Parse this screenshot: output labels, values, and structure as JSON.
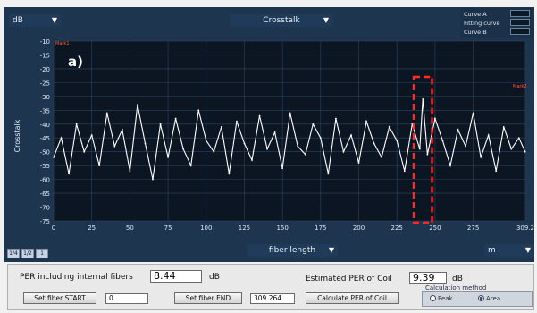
{
  "top": {
    "unit_dropdown": "dB",
    "measurement_dropdown": "Crosstalk",
    "xaxis_dropdown": "fiber length",
    "xunit_dropdown": "m"
  },
  "legend": {
    "items": [
      {
        "label": "Curve A",
        "color": "#ffffff"
      },
      {
        "label": "Fitting curve",
        "color": "#ff7070"
      },
      {
        "label": "Curve B",
        "color": "#7fe27f"
      }
    ]
  },
  "chart_data": {
    "type": "line",
    "title": "",
    "xlabel": "",
    "ylabel": "Crosstalk",
    "xlim": [
      0,
      309.2
    ],
    "ylim": [
      -75,
      -10
    ],
    "x_ticks": [
      "0",
      "25",
      "50",
      "75",
      "100",
      "125",
      "150",
      "175",
      "200",
      "225",
      "250",
      "275",
      "309.2"
    ],
    "y_ticks": [
      "-10",
      "-15",
      "-20",
      "-25",
      "-30",
      "-35",
      "-40",
      "-45",
      "-50",
      "-55",
      "-60",
      "-65",
      "-70",
      "-75"
    ],
    "panel_label": "a)",
    "marker_left_label": "Mark1",
    "marker_right_label": "Mark2",
    "grid": true,
    "highlight_region": {
      "x_start": 236,
      "x_end": 248,
      "color": "#ff2a2a",
      "style": "dashed"
    },
    "series": [
      {
        "name": "Curve A",
        "color": "#ffffff",
        "x": [
          0,
          5,
          10,
          15,
          20,
          25,
          30,
          35,
          40,
          45,
          50,
          55,
          60,
          65,
          70,
          75,
          80,
          85,
          90,
          95,
          100,
          105,
          110,
          115,
          120,
          125,
          130,
          135,
          140,
          145,
          150,
          155,
          160,
          165,
          170,
          175,
          180,
          185,
          190,
          195,
          200,
          205,
          210,
          215,
          220,
          225,
          230,
          235,
          240,
          242,
          245,
          250,
          255,
          260,
          265,
          270,
          275,
          280,
          285,
          290,
          295,
          300,
          305,
          309
        ],
        "y": [
          -52,
          -45,
          -58,
          -40,
          -50,
          -44,
          -55,
          -36,
          -48,
          -42,
          -57,
          -33,
          -47,
          -60,
          -40,
          -52,
          -38,
          -49,
          -55,
          -35,
          -46,
          -50,
          -41,
          -58,
          -39,
          -47,
          -53,
          -37,
          -49,
          -43,
          -56,
          -36,
          -48,
          -51,
          -40,
          -45,
          -58,
          -38,
          -50,
          -44,
          -54,
          -39,
          -47,
          -52,
          -41,
          -46,
          -57,
          -40,
          -49,
          -31,
          -51,
          -38,
          -46,
          -55,
          -42,
          -48,
          -36,
          -52,
          -44,
          -57,
          -41,
          -49,
          -45,
          -50
        ]
      }
    ]
  },
  "bottom": {
    "per_internal_label": "PER including  internal fibers",
    "per_internal_value": "8.44",
    "per_internal_unit": "dB",
    "est_per_label": "Estimated PER of Coil",
    "est_per_value": "9.39",
    "est_per_unit": "dB",
    "set_start_label": "Set fiber START",
    "start_value": "0",
    "set_end_label": "Set fiber END",
    "end_value": "309.264",
    "calc_label": "Calculate  PER of Coil",
    "calc_method_label": "Calculation  method",
    "radio_peak": "Peak",
    "radio_area": "Area",
    "selected_method": "Area"
  },
  "small_buttons": [
    "1/4",
    "1/2",
    "1"
  ]
}
